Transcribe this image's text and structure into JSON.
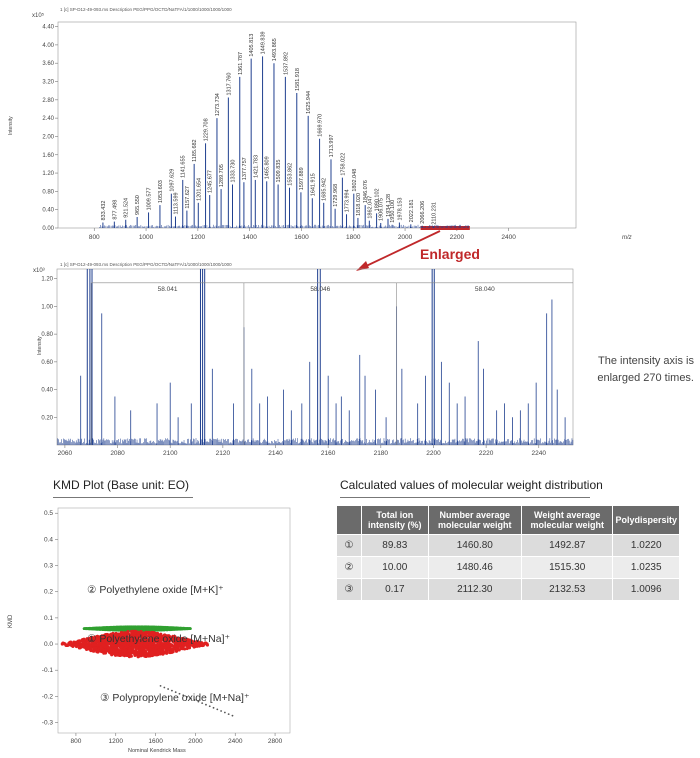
{
  "chart_data": [
    {
      "type": "bar",
      "header": "1 [c] SP-D12-49-093.ms   Description PEG/PPG/OCTD/NaTFA/1/1000/1000/1000/1000",
      "exponent": "x10⁵",
      "ylabel": "Intensity",
      "xlabel": "m/z",
      "xlim": [
        660,
        2660
      ],
      "ylim": [
        0,
        4.5
      ],
      "xticks": [
        800,
        1000,
        1200,
        1400,
        1600,
        1800,
        2000,
        2200,
        2400
      ],
      "yticks": [
        0.0,
        0.4,
        0.8,
        1.2,
        1.6,
        2.0,
        2.4,
        2.8,
        3.2,
        3.6,
        4.0,
        4.4
      ],
      "ytick_labels": [
        "0.00",
        "0.40",
        "0.80",
        "1.20",
        "1.60",
        "2.00",
        "2.40",
        "2.80",
        "3.20",
        "3.60",
        "4.00",
        "4.40"
      ],
      "peaks": [
        {
          "x": 833.432,
          "y": 0.12,
          "label": "833.432"
        },
        {
          "x": 877.498,
          "y": 0.14,
          "label": "877.498"
        },
        {
          "x": 921.524,
          "y": 0.18,
          "label": "921.524"
        },
        {
          "x": 965.55,
          "y": 0.24,
          "label": "965.550"
        },
        {
          "x": 1009.577,
          "y": 0.34,
          "label": "1009.577"
        },
        {
          "x": 1053.603,
          "y": 0.5,
          "label": "1053.603"
        },
        {
          "x": 1097.629,
          "y": 0.75,
          "label": "1097.629"
        },
        {
          "x": 1141.655,
          "y": 1.05,
          "label": "1141.655"
        },
        {
          "x": 1185.682,
          "y": 1.4,
          "label": "1185.682"
        },
        {
          "x": 1229.708,
          "y": 1.85,
          "label": "1229.708"
        },
        {
          "x": 1273.734,
          "y": 2.4,
          "label": "1273.734"
        },
        {
          "x": 1317.76,
          "y": 2.85,
          "label": "1317.760"
        },
        {
          "x": 1361.787,
          "y": 3.3,
          "label": "1361.787"
        },
        {
          "x": 1405.813,
          "y": 3.7,
          "label": "1405.813"
        },
        {
          "x": 1449.839,
          "y": 3.75,
          "label": "1449.839"
        },
        {
          "x": 1493.865,
          "y": 3.6,
          "label": "1493.865"
        },
        {
          "x": 1537.892,
          "y": 3.3,
          "label": "1537.892"
        },
        {
          "x": 1581.918,
          "y": 2.95,
          "label": "1581.918"
        },
        {
          "x": 1625.944,
          "y": 2.45,
          "label": "1625.944"
        },
        {
          "x": 1669.97,
          "y": 1.95,
          "label": "1669.970"
        },
        {
          "x": 1713.997,
          "y": 1.5,
          "label": "1713.997"
        },
        {
          "x": 1758.022,
          "y": 1.1,
          "label": "1758.022"
        },
        {
          "x": 1802.048,
          "y": 0.75,
          "label": "1802.048"
        },
        {
          "x": 1846.076,
          "y": 0.5,
          "label": "1846.076"
        },
        {
          "x": 1890.102,
          "y": 0.32,
          "label": "1890.102"
        },
        {
          "x": 1934.128,
          "y": 0.2,
          "label": "1934.128"
        },
        {
          "x": 1978.153,
          "y": 0.12,
          "label": "1978.153"
        },
        {
          "x": 2022.181,
          "y": 0.08,
          "label": "2022.181"
        },
        {
          "x": 2066.206,
          "y": 0.05,
          "label": "2066.206"
        },
        {
          "x": 2110.231,
          "y": 0.03,
          "label": "2110.231"
        },
        {
          "x": 1113.599,
          "y": 0.25,
          "label": "1113.599"
        },
        {
          "x": 1157.627,
          "y": 0.38,
          "label": "1157.627"
        },
        {
          "x": 1201.654,
          "y": 0.55,
          "label": "1201.654"
        },
        {
          "x": 1245.677,
          "y": 0.72,
          "label": "1245.677"
        },
        {
          "x": 1289.705,
          "y": 0.85,
          "label": "1289.705"
        },
        {
          "x": 1333.73,
          "y": 0.95,
          "label": "1333.730"
        },
        {
          "x": 1377.757,
          "y": 1.0,
          "label": "1377.757"
        },
        {
          "x": 1421.783,
          "y": 1.05,
          "label": "1421.783"
        },
        {
          "x": 1465.809,
          "y": 1.02,
          "label": "1465.809"
        },
        {
          "x": 1509.835,
          "y": 0.95,
          "label": "1509.835"
        },
        {
          "x": 1553.862,
          "y": 0.88,
          "label": "1553.862"
        },
        {
          "x": 1597.889,
          "y": 0.78,
          "label": "1597.889"
        },
        {
          "x": 1641.915,
          "y": 0.65,
          "label": "1641.915"
        },
        {
          "x": 1685.942,
          "y": 0.55,
          "label": "1685.942"
        },
        {
          "x": 1729.968,
          "y": 0.42,
          "label": "1729.968"
        },
        {
          "x": 1773.994,
          "y": 0.3,
          "label": "1773.994"
        },
        {
          "x": 1818.02,
          "y": 0.22,
          "label": "1818.020"
        },
        {
          "x": 1862.047,
          "y": 0.16,
          "label": "1862.047"
        },
        {
          "x": 1906.075,
          "y": 0.11,
          "label": "1906.075"
        },
        {
          "x": 1950.1,
          "y": 0.07,
          "label": "1950.100"
        }
      ],
      "enlarged_range": [
        2060,
        2250
      ]
    },
    {
      "type": "bar",
      "header": "1 [c] SP-D12-49-093.ms   Description PEG/PPG/OCTD/NaTFA/1/1000/1000/1000/1000",
      "exponent": "x10³",
      "ylabel": "Intensity",
      "xlim": [
        2057,
        2253
      ],
      "ylim": [
        0,
        1.27
      ],
      "xticks": [
        2060,
        2080,
        2100,
        2120,
        2140,
        2160,
        2180,
        2200,
        2220,
        2240
      ],
      "yticks": [
        0.2,
        0.4,
        0.6,
        0.8,
        1.0,
        1.2
      ],
      "ytick_labels": [
        "0.20",
        "0.40",
        "0.60",
        "0.80",
        "1.00",
        "1.20"
      ],
      "spacing_labels": [
        {
          "x1": 2070,
          "x2": 2128,
          "label": "58.041"
        },
        {
          "x1": 2128,
          "x2": 2186,
          "label": "58.046"
        },
        {
          "x1": 2186,
          "x2": 2253,
          "label": "58.040"
        }
      ]
    },
    {
      "type": "scatter",
      "title": "KMD Plot (Base unit: EO)",
      "xlabel": "Nominal Kendrick Mass",
      "ylabel": "KMD",
      "xlim": [
        620,
        2950
      ],
      "ylim": [
        -0.34,
        0.52
      ],
      "xticks": [
        800,
        1200,
        1600,
        2000,
        2400,
        2800
      ],
      "yticks": [
        -0.3,
        -0.2,
        -0.1,
        0.0,
        0.1,
        0.2,
        0.3,
        0.4,
        0.5
      ],
      "ytick_labels": [
        "-0.3",
        "-0.2",
        "-0.1",
        "0.0",
        "0.1",
        "0.2",
        "0.3",
        "0.4",
        "0.5"
      ],
      "series": [
        {
          "name": "① Polyethylene oxide [M+Na]⁺",
          "color": "#e02020",
          "x_range": [
            660,
            2120
          ],
          "kmd": 0.0
        },
        {
          "name": "② Polyethylene oxide [M+K]⁺",
          "color": "#30a030",
          "x_range": [
            880,
            1950
          ],
          "kmd": 0.055
        },
        {
          "name": "③ Polypropylene oxide [M+Na]⁺",
          "color": "#555555",
          "x_range": [
            1650,
            2380
          ],
          "kmd_start": -0.16,
          "kmd_end": -0.275
        }
      ]
    }
  ],
  "annotations": {
    "enlarged": "Enlarged",
    "intensity_note_1": "The intensity axis is",
    "intensity_note_2": "enlarged 270 times."
  },
  "table": {
    "title": "Calculated values of molecular weight distribution",
    "headers": [
      "",
      "Total ion intensity (%)",
      "Number average molecular weight",
      "Weight average molecular weight",
      "Polydispersity"
    ],
    "rows": [
      [
        "①",
        "89.83",
        "1460.80",
        "1492.87",
        "1.0220"
      ],
      [
        "②",
        "10.00",
        "1480.46",
        "1515.30",
        "1.0235"
      ],
      [
        "③",
        "0.17",
        "2112.30",
        "2132.53",
        "1.0096"
      ]
    ]
  },
  "colors": {
    "spectrum": "#1f3f8f",
    "enlarged_bar": "#c0282a",
    "header_bg": "#6b6b6b"
  }
}
